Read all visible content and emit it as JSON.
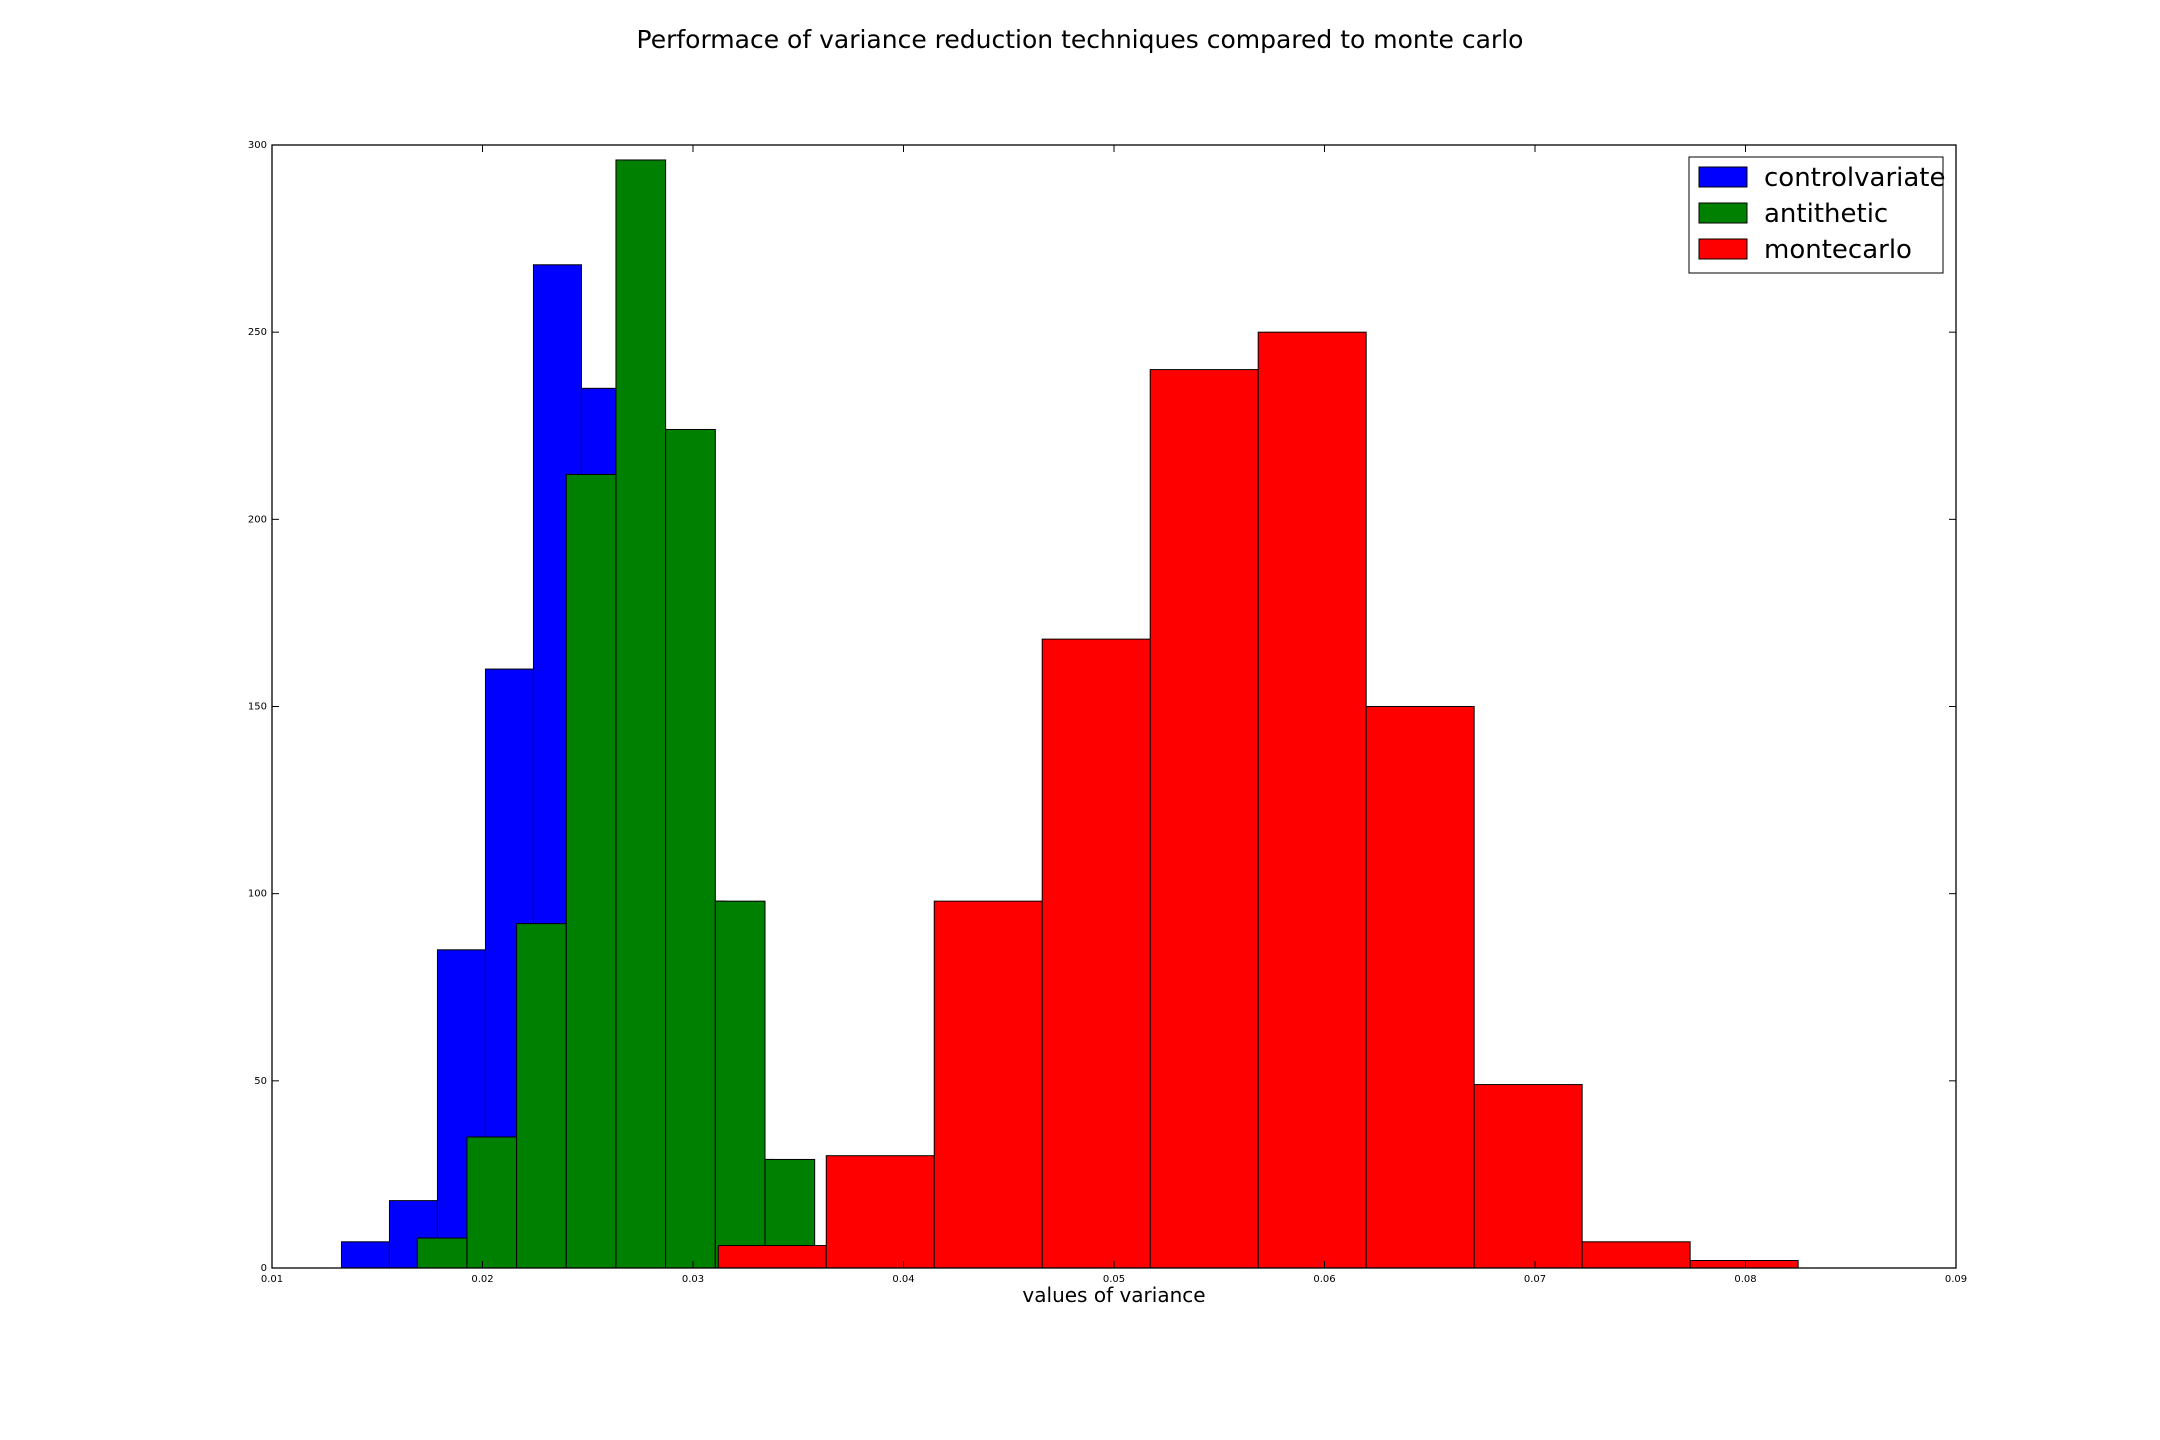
{
  "chart_data": {
    "type": "bar",
    "title": "Performace of variance reduction techniques compared to monte carlo",
    "xlabel": "values of variance",
    "ylabel": "",
    "xlim": [
      0.01,
      0.09
    ],
    "ylim": [
      0,
      300
    ],
    "xticks": [
      0.01,
      0.02,
      0.03,
      0.04,
      0.05,
      0.06,
      0.07,
      0.08,
      0.09
    ],
    "xtick_labels": [
      "0.01",
      "0.02",
      "0.03",
      "0.04",
      "0.05",
      "0.06",
      "0.07",
      "0.08",
      "0.09"
    ],
    "yticks": [
      0,
      50,
      100,
      150,
      200,
      250,
      300
    ],
    "ytick_labels": [
      "0",
      "50",
      "100",
      "150",
      "200",
      "250",
      "300"
    ],
    "grid": false,
    "legend_position": "top-right",
    "series": [
      {
        "name": "controlvariate",
        "color": "#0000ff",
        "bin_edges": [
          0.0133,
          0.01558,
          0.01786,
          0.02014,
          0.02242,
          0.0247,
          0.02698,
          0.02926,
          0.03154,
          0.03382,
          0.0361
        ],
        "counts": [
          7,
          18,
          85,
          160,
          268,
          235,
          224,
          98,
          29,
          0
        ]
      },
      {
        "name": "antithetic",
        "color": "#008000",
        "bin_edges": [
          0.0169,
          0.01926,
          0.02162,
          0.02398,
          0.02634,
          0.0287,
          0.03106,
          0.03342,
          0.03578
        ],
        "counts": [
          8,
          35,
          92,
          212,
          296,
          224,
          98,
          29
        ]
      },
      {
        "name": "montecarlo",
        "color": "#ff0000",
        "bin_edges": [
          0.0312,
          0.03633,
          0.04146,
          0.04659,
          0.05172,
          0.05685,
          0.06198,
          0.06711,
          0.07224,
          0.07737,
          0.0825
        ],
        "counts": [
          6,
          30,
          98,
          168,
          240,
          250,
          150,
          49,
          7,
          2
        ]
      }
    ]
  }
}
